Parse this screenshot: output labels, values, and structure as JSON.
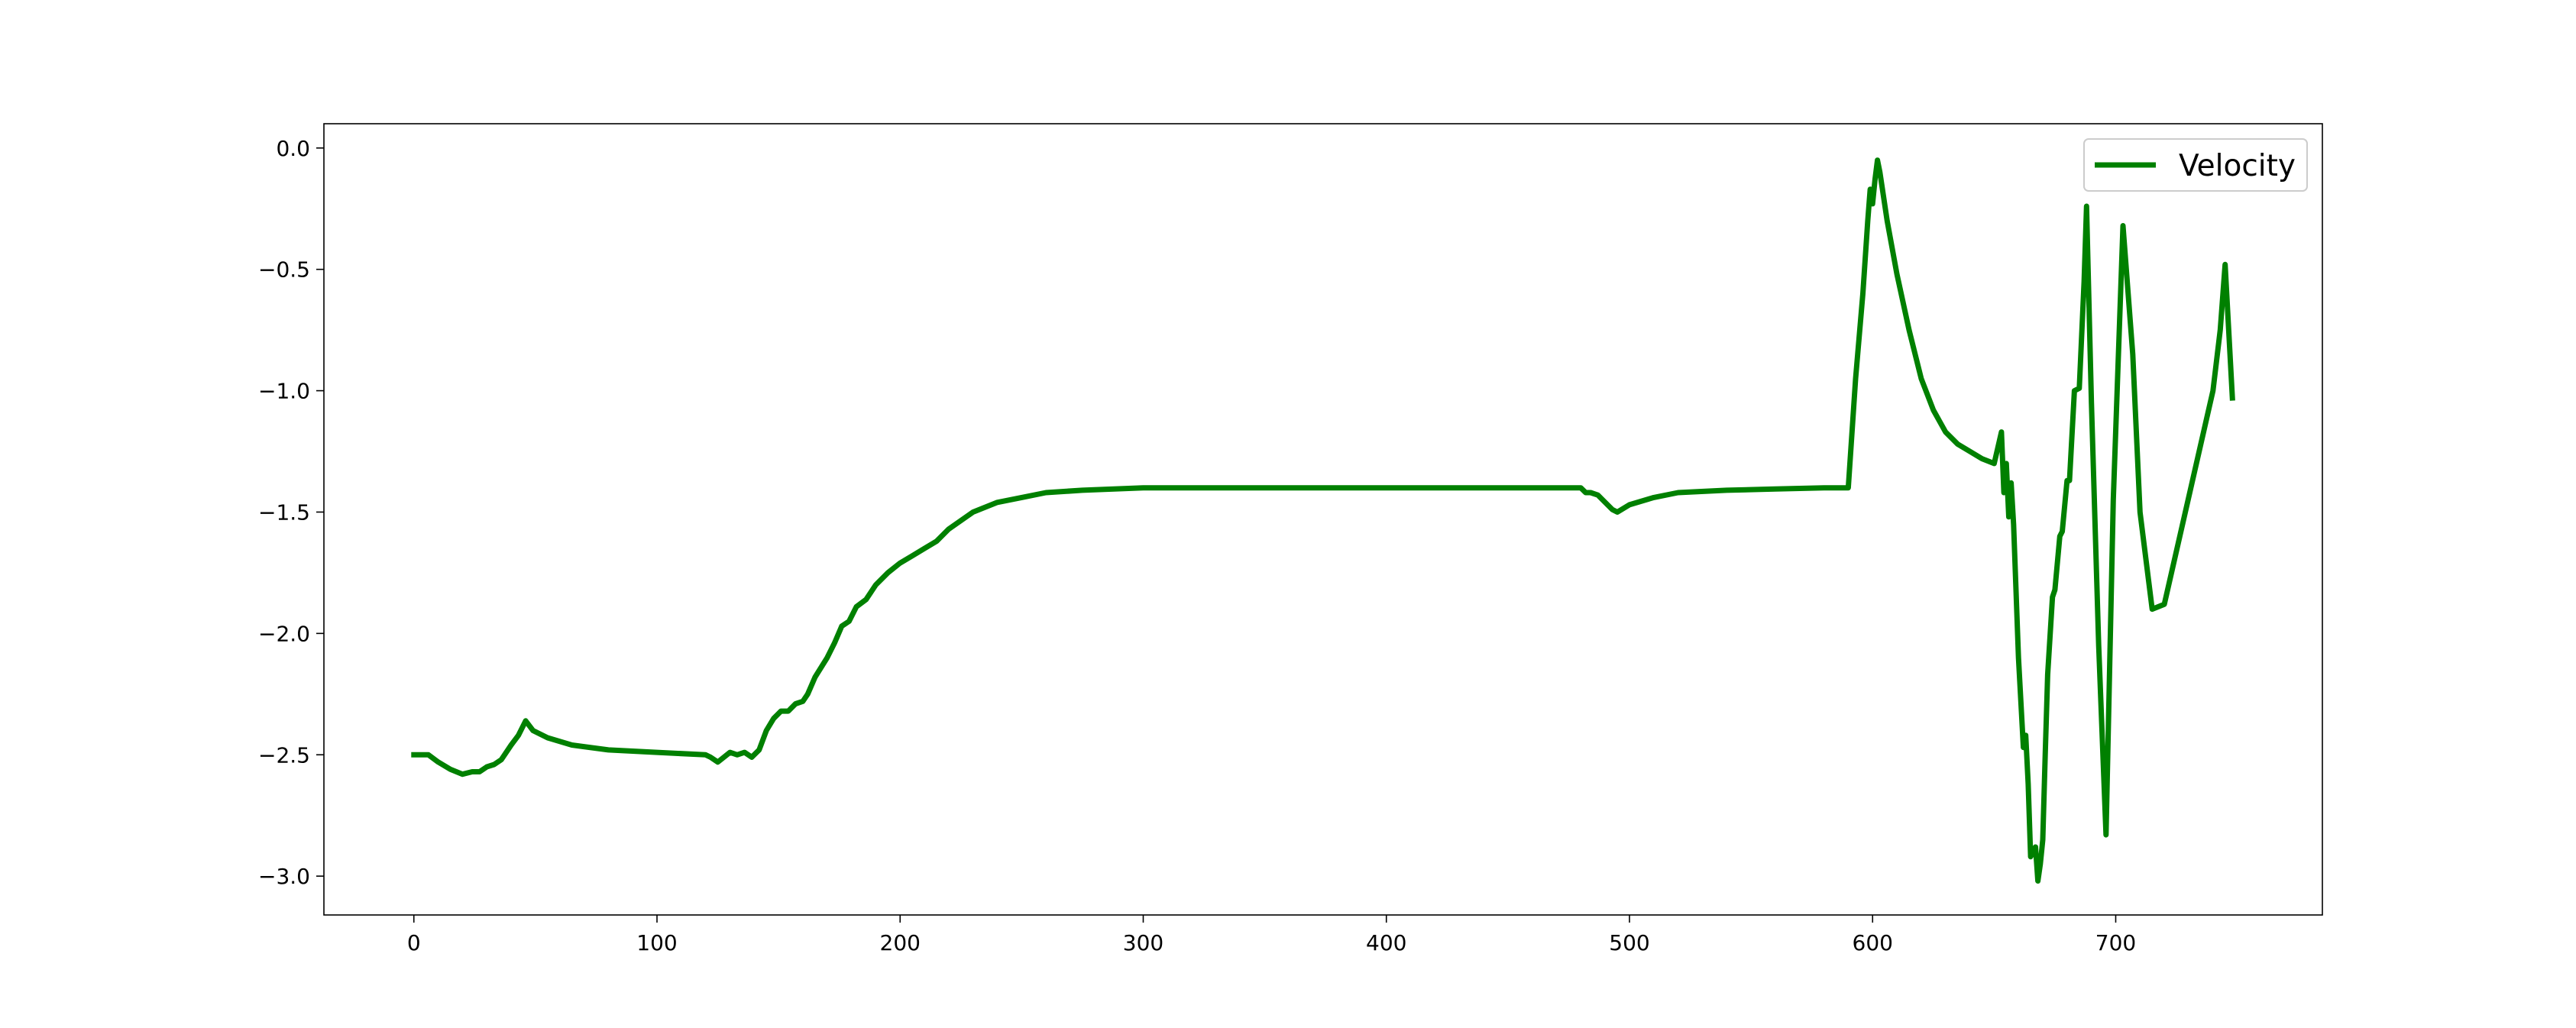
{
  "chart_data": {
    "type": "line",
    "title": "",
    "xlabel": "",
    "ylabel": "",
    "xlim": [
      -37,
      785
    ],
    "ylim": [
      -3.16,
      0.1
    ],
    "xticks": [
      0,
      100,
      200,
      300,
      400,
      500,
      600,
      700
    ],
    "yticks": [
      0.0,
      -0.5,
      -1.0,
      -1.5,
      -2.0,
      -2.5,
      -3.0
    ],
    "xtick_labels": [
      "0",
      "100",
      "200",
      "300",
      "400",
      "500",
      "600",
      "700"
    ],
    "ytick_labels": [
      "0.0",
      "−0.5",
      "−1.0",
      "−1.5",
      "−2.0",
      "−2.5",
      "−3.0"
    ],
    "grid": false,
    "legend_position": "top-right",
    "series": [
      {
        "name": "Velocity",
        "color": "#008000",
        "x": [
          0,
          6,
          10,
          15,
          20,
          24,
          27,
          30,
          33,
          36,
          40,
          43,
          46,
          49,
          55,
          65,
          80,
          100,
          120,
          122,
          125,
          130,
          133,
          136,
          139,
          142,
          145,
          148,
          151,
          154,
          157,
          160,
          162,
          165,
          170,
          173,
          176,
          179,
          182,
          186,
          190,
          195,
          200,
          205,
          210,
          215,
          220,
          230,
          240,
          250,
          260,
          275,
          300,
          350,
          400,
          450,
          480,
          482,
          484,
          487,
          490,
          493,
          495,
          500,
          510,
          520,
          540,
          560,
          580,
          590,
          593,
          596,
          598,
          599,
          600,
          601,
          602,
          603,
          606,
          610,
          615,
          620,
          625,
          630,
          635,
          640,
          645,
          650,
          653,
          654,
          655,
          656,
          657,
          658,
          660,
          662,
          663,
          664,
          665,
          666,
          667,
          668,
          669,
          670,
          671,
          672,
          674,
          675,
          677,
          678,
          680,
          681,
          683,
          685,
          687,
          688,
          690,
          693,
          696,
          699,
          703,
          707,
          710,
          715,
          720,
          740,
          743,
          745,
          747,
          748
        ],
        "values": [
          -2.5,
          -2.5,
          -2.53,
          -2.56,
          -2.58,
          -2.57,
          -2.57,
          -2.55,
          -2.54,
          -2.52,
          -2.46,
          -2.42,
          -2.36,
          -2.4,
          -2.43,
          -2.46,
          -2.48,
          -2.49,
          -2.5,
          -2.51,
          -2.53,
          -2.49,
          -2.5,
          -2.49,
          -2.51,
          -2.48,
          -2.4,
          -2.35,
          -2.32,
          -2.32,
          -2.29,
          -2.28,
          -2.25,
          -2.18,
          -2.1,
          -2.04,
          -1.97,
          -1.95,
          -1.89,
          -1.86,
          -1.8,
          -1.75,
          -1.71,
          -1.68,
          -1.65,
          -1.62,
          -1.57,
          -1.5,
          -1.46,
          -1.44,
          -1.42,
          -1.41,
          -1.4,
          -1.4,
          -1.4,
          -1.4,
          -1.4,
          -1.42,
          -1.42,
          -1.43,
          -1.46,
          -1.49,
          -1.5,
          -1.47,
          -1.44,
          -1.42,
          -1.41,
          -1.405,
          -1.4,
          -1.4,
          -0.95,
          -0.6,
          -0.3,
          -0.17,
          -0.23,
          -0.13,
          -0.05,
          -0.1,
          -0.3,
          -0.52,
          -0.75,
          -0.95,
          -1.08,
          -1.17,
          -1.22,
          -1.25,
          -1.28,
          -1.3,
          -1.17,
          -1.42,
          -1.3,
          -1.52,
          -1.38,
          -1.55,
          -2.1,
          -2.47,
          -2.42,
          -2.62,
          -2.92,
          -2.9,
          -2.88,
          -3.02,
          -2.95,
          -2.85,
          -2.5,
          -2.17,
          -1.85,
          -1.82,
          -1.6,
          -1.58,
          -1.37,
          -1.37,
          -1.0,
          -0.99,
          -0.55,
          -0.24,
          -1.05,
          -2.05,
          -2.83,
          -1.45,
          -0.32,
          -0.85,
          -1.5,
          -1.9,
          -1.88,
          -1.0,
          -0.75,
          -0.48,
          -0.85,
          -1.03
        ]
      }
    ]
  }
}
